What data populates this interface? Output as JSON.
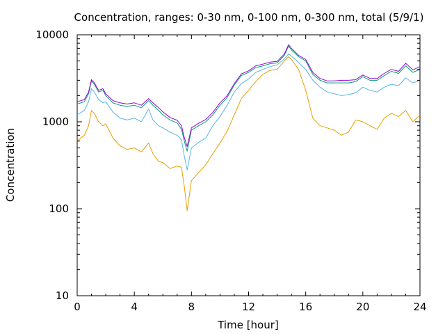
{
  "chart_data": {
    "type": "line",
    "title": "Concentration, ranges: 0-30 nm, 0-100 nm, 0-300 nm, total (5/9/1)",
    "xlabel": "Time [hour]",
    "ylabel": "Concentration",
    "xlim": [
      0,
      24
    ],
    "ylim": [
      10,
      10000
    ],
    "yscale": "log",
    "xticks": [
      "0",
      "4",
      "8",
      "12",
      "16",
      "20",
      "24"
    ],
    "yticks": [
      "10",
      "100",
      "1000",
      "10000"
    ],
    "grid": false,
    "legend": "none",
    "x": [
      0,
      0.5,
      0.8,
      1.0,
      1.2,
      1.5,
      1.8,
      2.0,
      2.5,
      3.0,
      3.5,
      4.0,
      4.5,
      5.0,
      5.3,
      5.7,
      6.0,
      6.5,
      7.0,
      7.3,
      7.5,
      7.7,
      8.0,
      8.5,
      9.0,
      9.5,
      10.0,
      10.5,
      11.0,
      11.5,
      12.0,
      12.5,
      13.0,
      13.5,
      14.0,
      14.5,
      14.8,
      15.0,
      15.5,
      16.0,
      16.5,
      17.0,
      17.5,
      18.0,
      18.5,
      19.0,
      19.5,
      20.0,
      20.5,
      21.0,
      21.5,
      22.0,
      22.5,
      23.0,
      23.5,
      24.0
    ],
    "series": [
      {
        "color": "#e69f00",
        "values": [
          600,
          700,
          900,
          1350,
          1250,
          1000,
          900,
          950,
          650,
          530,
          480,
          500,
          450,
          570,
          430,
          350,
          340,
          290,
          310,
          300,
          180,
          95,
          210,
          260,
          320,
          430,
          570,
          780,
          1200,
          1850,
          2300,
          2900,
          3500,
          3900,
          4000,
          5000,
          5600,
          5200,
          4000,
          2300,
          1100,
          900,
          850,
          800,
          700,
          760,
          1050,
          1000,
          900,
          820,
          1100,
          1250,
          1150,
          1350,
          1000,
          1200
        ]
      },
      {
        "color": "#56b4e9",
        "values": [
          1200,
          1350,
          1700,
          2400,
          2200,
          1800,
          1650,
          1700,
          1300,
          1100,
          1050,
          1100,
          1000,
          1400,
          1050,
          900,
          850,
          760,
          700,
          620,
          400,
          280,
          500,
          580,
          650,
          900,
          1150,
          1550,
          2200,
          2750,
          3100,
          3700,
          4000,
          4300,
          4500,
          5300,
          6000,
          5700,
          4800,
          4000,
          3000,
          2500,
          2200,
          2100,
          2000,
          2050,
          2150,
          2500,
          2300,
          2200,
          2500,
          2700,
          2600,
          3200,
          2800,
          3000
        ]
      },
      {
        "color": "#009e73",
        "values": [
          1600,
          1700,
          2100,
          2950,
          2700,
          2200,
          2300,
          2000,
          1650,
          1550,
          1500,
          1550,
          1450,
          1750,
          1550,
          1350,
          1200,
          1050,
          970,
          820,
          600,
          460,
          800,
          900,
          1000,
          1200,
          1550,
          1900,
          2650,
          3400,
          3700,
          4200,
          4400,
          4650,
          4750,
          5800,
          7400,
          6700,
          5600,
          5000,
          3500,
          3000,
          2800,
          2800,
          2800,
          2800,
          2900,
          3300,
          3000,
          3000,
          3400,
          3800,
          3600,
          4400,
          3700,
          4000
        ]
      },
      {
        "color": "#9400d3",
        "values": [
          1700,
          1800,
          2200,
          3050,
          2800,
          2300,
          2400,
          2100,
          1750,
          1650,
          1600,
          1650,
          1550,
          1850,
          1650,
          1450,
          1300,
          1120,
          1040,
          900,
          660,
          520,
          850,
          960,
          1060,
          1280,
          1650,
          2000,
          2750,
          3550,
          3850,
          4400,
          4600,
          4850,
          4950,
          6000,
          7700,
          7000,
          5800,
          5200,
          3700,
          3150,
          2950,
          2950,
          3000,
          3000,
          3050,
          3450,
          3150,
          3150,
          3600,
          4000,
          3800,
          4700,
          3950,
          4300
        ]
      }
    ]
  }
}
